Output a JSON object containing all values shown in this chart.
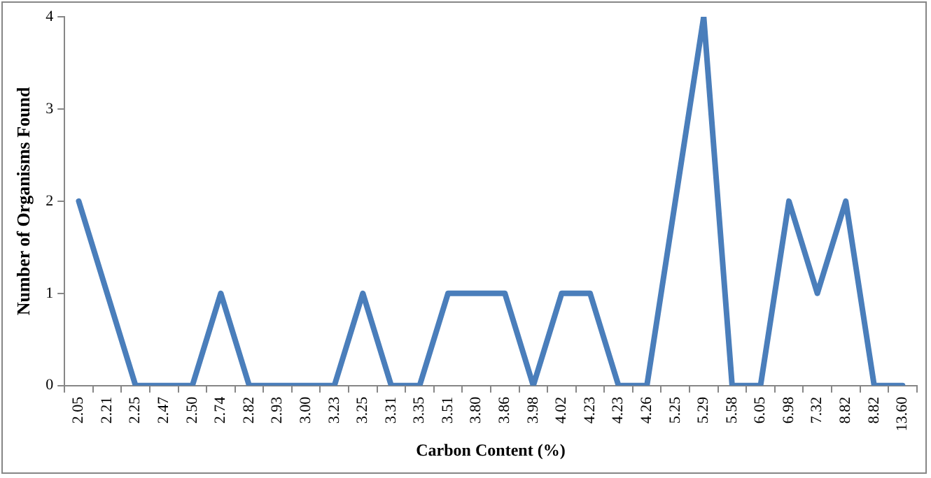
{
  "chart_data": {
    "type": "line",
    "xlabel": "Carbon Content (%)",
    "ylabel": "Number of Organisms Found",
    "categories": [
      "2.05",
      "2.21",
      "2.25",
      "2.47",
      "2.50",
      "2.74",
      "2.82",
      "2.93",
      "3.00",
      "3.23",
      "3.25",
      "3.31",
      "3.35",
      "3.51",
      "3.80",
      "3.86",
      "3.98",
      "4.02",
      "4.23",
      "4.23",
      "4.26",
      "5.25",
      "5.29",
      "5.58",
      "6.05",
      "6.98",
      "7.32",
      "8.82",
      "8.82",
      "13.60"
    ],
    "series": [
      {
        "color": "#4a7ebb",
        "values": [
          2,
          1,
          0,
          0,
          0,
          1,
          0,
          0,
          0,
          0,
          1,
          0,
          0,
          1,
          1,
          1,
          0,
          1,
          1,
          0,
          0,
          2,
          4,
          0,
          0,
          2,
          1,
          2,
          0,
          0
        ]
      }
    ],
    "ylim": [
      0,
      4
    ],
    "yticks": [
      0,
      1,
      2,
      3,
      4
    ],
    "grid": false,
    "legend": false,
    "marker": "none",
    "line_style": "solid"
  }
}
